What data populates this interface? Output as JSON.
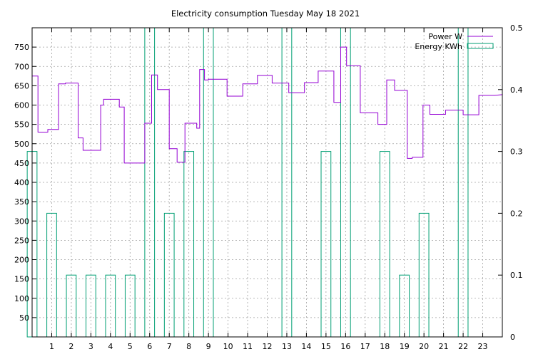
{
  "chart_data": {
    "type": "line",
    "title": "Electricity consumption Tuesday May 18 2021",
    "xlabel": "",
    "ylabel": "",
    "y2label": "",
    "xlim": [
      0,
      24
    ],
    "ylim": [
      0,
      800
    ],
    "y2lim": [
      0,
      0.5
    ],
    "grid": true,
    "legend_position": "top-right",
    "x_ticks": [
      1,
      2,
      3,
      4,
      5,
      6,
      7,
      8,
      9,
      10,
      11,
      12,
      13,
      14,
      15,
      16,
      17,
      18,
      19,
      20,
      21,
      22,
      23
    ],
    "y_ticks": [
      50,
      100,
      150,
      200,
      250,
      300,
      350,
      400,
      450,
      500,
      550,
      600,
      650,
      700,
      750
    ],
    "y2_ticks": [
      "0",
      "0.1",
      "0.2",
      "0.3",
      "0.4",
      "0.5"
    ],
    "series": [
      {
        "name": "Power W",
        "color": "#9400d3",
        "style": "step",
        "axis": "left",
        "points": [
          [
            0,
            675
          ],
          [
            0.3,
            675
          ],
          [
            0.3,
            530
          ],
          [
            0.8,
            530
          ],
          [
            0.8,
            537
          ],
          [
            1.35,
            537
          ],
          [
            1.35,
            655
          ],
          [
            1.7,
            655
          ],
          [
            1.7,
            657
          ],
          [
            2.35,
            657
          ],
          [
            2.35,
            515
          ],
          [
            2.6,
            515
          ],
          [
            2.6,
            483
          ],
          [
            3.5,
            483
          ],
          [
            3.5,
            600
          ],
          [
            3.65,
            600
          ],
          [
            3.65,
            615
          ],
          [
            4.45,
            615
          ],
          [
            4.45,
            595
          ],
          [
            4.7,
            595
          ],
          [
            4.7,
            450
          ],
          [
            5.75,
            450
          ],
          [
            5.75,
            553
          ],
          [
            6.1,
            553
          ],
          [
            6.1,
            678
          ],
          [
            6.4,
            678
          ],
          [
            6.4,
            640
          ],
          [
            7.0,
            640
          ],
          [
            7.0,
            487
          ],
          [
            7.4,
            487
          ],
          [
            7.4,
            452
          ],
          [
            7.8,
            452
          ],
          [
            7.8,
            553
          ],
          [
            8.4,
            553
          ],
          [
            8.4,
            540
          ],
          [
            8.55,
            540
          ],
          [
            8.55,
            692
          ],
          [
            8.8,
            692
          ],
          [
            8.8,
            665
          ],
          [
            9.0,
            665
          ],
          [
            9.0,
            667
          ],
          [
            9.95,
            667
          ],
          [
            9.95,
            623
          ],
          [
            10.75,
            623
          ],
          [
            10.75,
            655
          ],
          [
            11.5,
            655
          ],
          [
            11.5,
            677
          ],
          [
            12.25,
            677
          ],
          [
            12.25,
            657
          ],
          [
            13.1,
            657
          ],
          [
            13.1,
            632
          ],
          [
            13.9,
            632
          ],
          [
            13.9,
            658
          ],
          [
            14.6,
            658
          ],
          [
            14.6,
            688
          ],
          [
            15.4,
            688
          ],
          [
            15.4,
            607
          ],
          [
            15.75,
            607
          ],
          [
            15.75,
            750
          ],
          [
            16.05,
            750
          ],
          [
            16.05,
            702
          ],
          [
            16.75,
            702
          ],
          [
            16.75,
            580
          ],
          [
            17.65,
            580
          ],
          [
            17.65,
            550
          ],
          [
            18.1,
            550
          ],
          [
            18.1,
            665
          ],
          [
            18.5,
            665
          ],
          [
            18.5,
            638
          ],
          [
            19.15,
            638
          ],
          [
            19.15,
            462
          ],
          [
            19.4,
            462
          ],
          [
            19.4,
            465
          ],
          [
            19.95,
            465
          ],
          [
            19.95,
            600
          ],
          [
            20.3,
            600
          ],
          [
            20.3,
            576
          ],
          [
            21.1,
            576
          ],
          [
            21.1,
            587
          ],
          [
            22.0,
            587
          ],
          [
            22.0,
            575
          ],
          [
            22.8,
            575
          ],
          [
            22.8,
            625
          ],
          [
            23.6,
            625
          ],
          [
            23.6,
            625
          ],
          [
            24,
            627
          ]
        ]
      },
      {
        "name": "Energy KWh",
        "color": "#009e73",
        "style": "boxes",
        "axis": "right",
        "bars": [
          [
            0,
            0.3
          ],
          [
            1,
            0.2
          ],
          [
            2,
            0.1
          ],
          [
            3,
            0.1
          ],
          [
            4,
            0.1
          ],
          [
            5,
            0.1
          ],
          [
            6,
            0.5
          ],
          [
            7,
            0.2
          ],
          [
            8,
            0.3
          ],
          [
            9,
            0.5
          ],
          [
            13,
            0.5
          ],
          [
            15,
            0.3
          ],
          [
            16,
            0.5
          ],
          [
            18,
            0.3
          ],
          [
            19,
            0.1
          ],
          [
            20,
            0.2
          ],
          [
            22,
            0.5
          ]
        ]
      }
    ]
  }
}
